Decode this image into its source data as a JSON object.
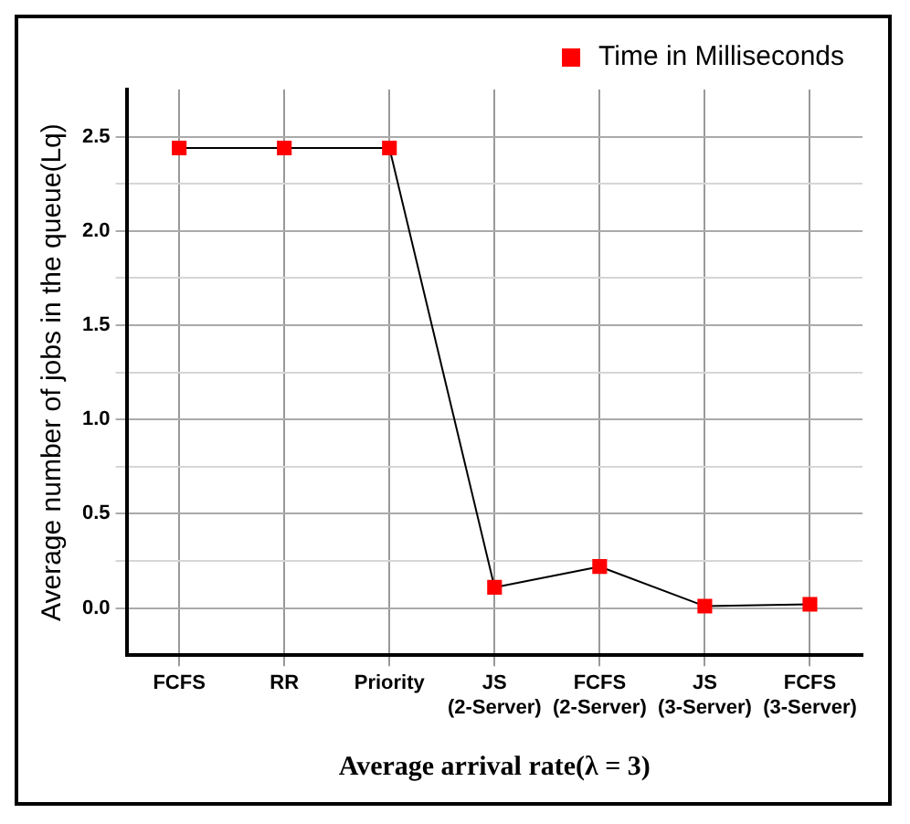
{
  "chart_data": {
    "type": "line",
    "xlabel": "Average arrival rate(λ = 3)",
    "ylabel": "Average number of jobs in the queue(Lq)",
    "categories": [
      "FCFS",
      "RR",
      "Priority",
      "JS\n(2-Server)",
      "FCFS\n(2-Server)",
      "JS\n(3-Server)",
      "FCFS\n(3-Server)"
    ],
    "series": [
      {
        "name": "Time in Milliseconds",
        "color": "#ff0000",
        "values": [
          2.44,
          2.44,
          2.44,
          0.11,
          0.22,
          0.01,
          0.02
        ]
      }
    ],
    "ylim": [
      -0.25,
      2.75
    ],
    "yticks": [
      {
        "value": 0,
        "label": "0.0"
      },
      {
        "value": 0.25,
        "label": null
      },
      0.5,
      {
        "value": 0.75,
        "label": null
      },
      {
        "value": 1,
        "label": "1.0"
      },
      {
        "value": 1.25,
        "label": null
      },
      1.5,
      {
        "value": 1.75,
        "label": null
      },
      {
        "value": 2,
        "label": "2.0"
      },
      {
        "value": 2.25,
        "label": null
      },
      2.5
    ],
    "grid": true,
    "legend": "top right",
    "marker": "square",
    "line_style": "solid"
  }
}
